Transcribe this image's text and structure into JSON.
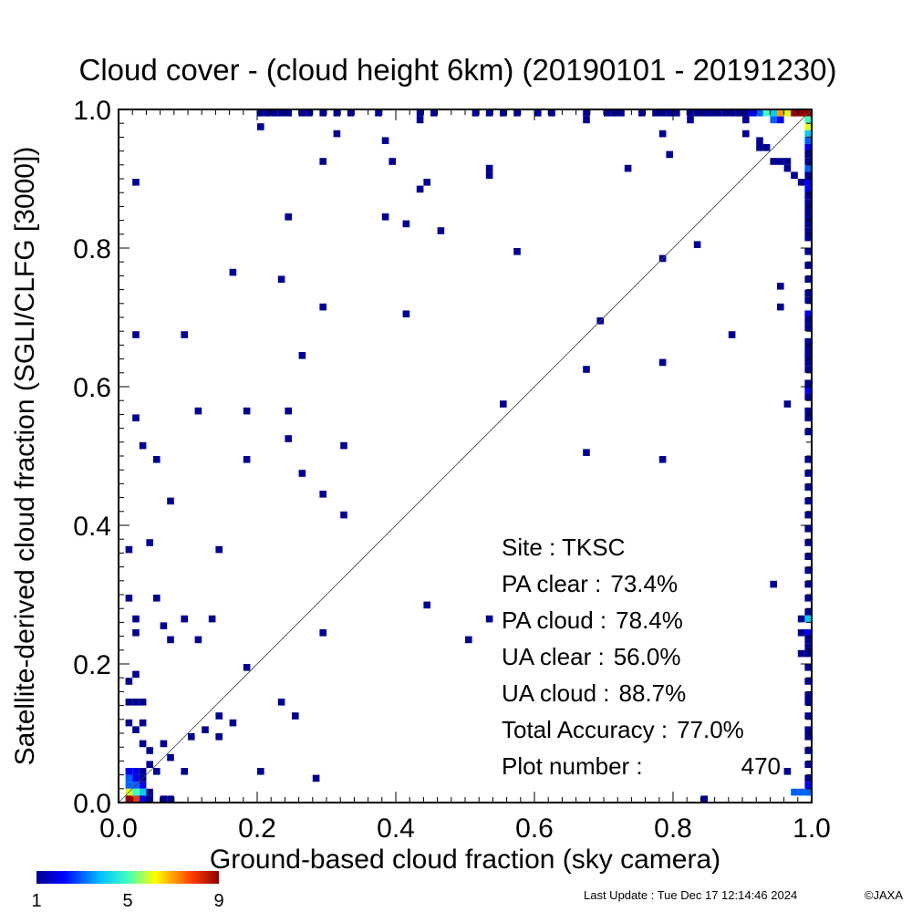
{
  "chart_data": {
    "type": "heatmap",
    "title": "Cloud cover - (cloud height 6km)  (20190101 - 20191230)",
    "xlabel": "Ground-based cloud fraction (sky camera)",
    "ylabel": "Satellite-derived cloud fraction (SGLI/CLFG [3000])",
    "xlim": [
      0.0,
      1.0
    ],
    "ylim": [
      0.0,
      1.0
    ],
    "xticks": [
      "0.0",
      "0.2",
      "0.4",
      "0.6",
      "0.8",
      "1.0"
    ],
    "yticks": [
      "0.0",
      "0.2",
      "0.4",
      "0.6",
      "0.8",
      "1.0"
    ],
    "grid": false,
    "diagonal_reference_line": true,
    "bin_size": 0.01,
    "colorbar": {
      "min_label": "1",
      "mid_label": "5",
      "max_label": "9",
      "colormap": "rainbow"
    },
    "stats": [
      {
        "label": "Site : TKSC",
        "value": ""
      },
      {
        "label": "PA clear :",
        "value": "73.4%"
      },
      {
        "label": "PA cloud :",
        "value": "78.4%"
      },
      {
        "label": "UA clear :",
        "value": "56.0%"
      },
      {
        "label": "UA cloud :",
        "value": "88.7%"
      },
      {
        "label": "Total Accuracy :",
        "value": "77.0%"
      },
      {
        "label": "Plot number :",
        "value": "470"
      }
    ],
    "points": [
      [
        0.2,
        0.99,
        1
      ],
      [
        0.21,
        0.99,
        1
      ],
      [
        0.22,
        0.99,
        1
      ],
      [
        0.23,
        0.99,
        1
      ],
      [
        0.24,
        0.99,
        1
      ],
      [
        0.26,
        0.99,
        1
      ],
      [
        0.27,
        0.99,
        1
      ],
      [
        0.29,
        0.99,
        1
      ],
      [
        0.31,
        0.99,
        1
      ],
      [
        0.33,
        0.99,
        1
      ],
      [
        0.37,
        0.99,
        1
      ],
      [
        0.43,
        0.99,
        1
      ],
      [
        0.45,
        0.99,
        1
      ],
      [
        0.51,
        0.99,
        1
      ],
      [
        0.53,
        0.99,
        1
      ],
      [
        0.55,
        0.99,
        1
      ],
      [
        0.57,
        0.99,
        1
      ],
      [
        0.6,
        0.99,
        1
      ],
      [
        0.62,
        0.99,
        1
      ],
      [
        0.67,
        0.99,
        1
      ],
      [
        0.7,
        0.99,
        1
      ],
      [
        0.71,
        0.99,
        1
      ],
      [
        0.72,
        0.99,
        1
      ],
      [
        0.75,
        0.99,
        1
      ],
      [
        0.77,
        0.99,
        1
      ],
      [
        0.78,
        0.99,
        1
      ],
      [
        0.79,
        0.99,
        1
      ],
      [
        0.8,
        0.99,
        1
      ],
      [
        0.82,
        0.99,
        1
      ],
      [
        0.83,
        0.99,
        1
      ],
      [
        0.84,
        0.99,
        1
      ],
      [
        0.85,
        0.99,
        1
      ],
      [
        0.86,
        0.99,
        1
      ],
      [
        0.87,
        0.99,
        1
      ],
      [
        0.88,
        0.99,
        1
      ],
      [
        0.89,
        0.99,
        1
      ],
      [
        0.9,
        0.99,
        1
      ],
      [
        0.91,
        0.99,
        2
      ],
      [
        0.92,
        0.99,
        3
      ],
      [
        0.93,
        0.99,
        5
      ],
      [
        0.94,
        0.99,
        4
      ],
      [
        0.95,
        0.99,
        7
      ],
      [
        0.96,
        0.99,
        6
      ],
      [
        0.97,
        0.99,
        9
      ],
      [
        0.98,
        0.99,
        9
      ],
      [
        0.99,
        0.99,
        9
      ],
      [
        0.82,
        0.98,
        1
      ],
      [
        0.9,
        0.98,
        1
      ],
      [
        0.94,
        0.98,
        3
      ],
      [
        0.95,
        0.98,
        2
      ],
      [
        0.99,
        0.98,
        5
      ],
      [
        0.99,
        0.97,
        6
      ],
      [
        0.99,
        0.96,
        4
      ],
      [
        0.99,
        0.95,
        3
      ],
      [
        0.99,
        0.94,
        2
      ],
      [
        0.99,
        0.93,
        1
      ],
      [
        0.99,
        0.92,
        1
      ],
      [
        0.99,
        0.91,
        3
      ],
      [
        0.99,
        0.9,
        1
      ],
      [
        0.99,
        0.89,
        2
      ],
      [
        0.99,
        0.88,
        2
      ],
      [
        0.99,
        0.87,
        1
      ],
      [
        0.99,
        0.86,
        1
      ],
      [
        0.99,
        0.85,
        1
      ],
      [
        0.99,
        0.84,
        1
      ],
      [
        0.99,
        0.83,
        1
      ],
      [
        0.99,
        0.82,
        1
      ],
      [
        0.99,
        0.81,
        1
      ],
      [
        0.99,
        0.79,
        1
      ],
      [
        0.99,
        0.77,
        1
      ],
      [
        0.99,
        0.75,
        1
      ],
      [
        0.99,
        0.73,
        1
      ],
      [
        0.99,
        0.72,
        1
      ],
      [
        0.99,
        0.7,
        2
      ],
      [
        0.99,
        0.69,
        1
      ],
      [
        0.99,
        0.68,
        1
      ],
      [
        0.99,
        0.66,
        1
      ],
      [
        0.99,
        0.65,
        1
      ],
      [
        0.99,
        0.64,
        1
      ],
      [
        0.99,
        0.63,
        1
      ],
      [
        0.99,
        0.62,
        1
      ],
      [
        0.99,
        0.6,
        1
      ],
      [
        0.99,
        0.59,
        2
      ],
      [
        0.99,
        0.58,
        1
      ],
      [
        0.99,
        0.56,
        1
      ],
      [
        0.99,
        0.55,
        1
      ],
      [
        0.99,
        0.53,
        1
      ],
      [
        0.99,
        0.49,
        1
      ],
      [
        0.99,
        0.47,
        1
      ],
      [
        0.99,
        0.45,
        1
      ],
      [
        0.99,
        0.43,
        1
      ],
      [
        0.99,
        0.41,
        1
      ],
      [
        0.99,
        0.39,
        1
      ],
      [
        0.99,
        0.37,
        1
      ],
      [
        0.99,
        0.35,
        1
      ],
      [
        0.99,
        0.33,
        1
      ],
      [
        0.99,
        0.31,
        1
      ],
      [
        0.99,
        0.29,
        1
      ],
      [
        0.99,
        0.27,
        1
      ],
      [
        0.99,
        0.26,
        4
      ],
      [
        0.99,
        0.24,
        2
      ],
      [
        0.99,
        0.23,
        1
      ],
      [
        0.99,
        0.22,
        1
      ],
      [
        0.99,
        0.21,
        1
      ],
      [
        0.99,
        0.19,
        1
      ],
      [
        0.99,
        0.17,
        1
      ],
      [
        0.99,
        0.15,
        1
      ],
      [
        0.99,
        0.14,
        1
      ],
      [
        0.99,
        0.12,
        1
      ],
      [
        0.99,
        0.1,
        1
      ],
      [
        0.99,
        0.09,
        1
      ],
      [
        0.99,
        0.07,
        1
      ],
      [
        0.99,
        0.05,
        1
      ],
      [
        0.99,
        0.03,
        1
      ],
      [
        0.99,
        0.02,
        2
      ],
      [
        0.99,
        0.01,
        3
      ],
      [
        0.98,
        0.26,
        1
      ],
      [
        0.98,
        0.24,
        1
      ],
      [
        0.98,
        0.21,
        1
      ],
      [
        0.98,
        0.89,
        1
      ],
      [
        0.98,
        0.01,
        3
      ],
      [
        0.97,
        0.01,
        3
      ],
      [
        0.96,
        0.57,
        1
      ],
      [
        0.95,
        0.71,
        1
      ],
      [
        0.95,
        0.74,
        1
      ],
      [
        0.94,
        0.31,
        1
      ],
      [
        0.96,
        0.04,
        1
      ],
      [
        0.97,
        0.9,
        1
      ],
      [
        0.96,
        0.91,
        1
      ],
      [
        0.96,
        0.92,
        1
      ],
      [
        0.95,
        0.92,
        1
      ],
      [
        0.94,
        0.92,
        1
      ],
      [
        0.93,
        0.94,
        1
      ],
      [
        0.92,
        0.94,
        1
      ],
      [
        0.92,
        0.95,
        1
      ],
      [
        0.9,
        0.96,
        1
      ],
      [
        0.02,
        0.89,
        1
      ],
      [
        0.02,
        0.67,
        1
      ],
      [
        0.02,
        0.55,
        1
      ],
      [
        0.03,
        0.51,
        1
      ],
      [
        0.01,
        0.36,
        1
      ],
      [
        0.04,
        0.37,
        1
      ],
      [
        0.05,
        0.49,
        1
      ],
      [
        0.07,
        0.43,
        1
      ],
      [
        0.09,
        0.67,
        1
      ],
      [
        0.11,
        0.56,
        1
      ],
      [
        0.16,
        0.76,
        1
      ],
      [
        0.18,
        0.56,
        1
      ],
      [
        0.18,
        0.49,
        1
      ],
      [
        0.2,
        0.97,
        1
      ],
      [
        0.23,
        0.75,
        1
      ],
      [
        0.24,
        0.84,
        1
      ],
      [
        0.24,
        0.56,
        1
      ],
      [
        0.24,
        0.52,
        1
      ],
      [
        0.26,
        0.64,
        1
      ],
      [
        0.26,
        0.47,
        1
      ],
      [
        0.29,
        0.92,
        1
      ],
      [
        0.29,
        0.71,
        1
      ],
      [
        0.29,
        0.44,
        1
      ],
      [
        0.31,
        0.96,
        1
      ],
      [
        0.32,
        0.51,
        1
      ],
      [
        0.32,
        0.41,
        1
      ],
      [
        0.38,
        0.95,
        1
      ],
      [
        0.39,
        0.92,
        1
      ],
      [
        0.38,
        0.84,
        1
      ],
      [
        0.41,
        0.83,
        1
      ],
      [
        0.41,
        0.7,
        1
      ],
      [
        0.43,
        0.98,
        1
      ],
      [
        0.43,
        0.88,
        1
      ],
      [
        0.44,
        0.89,
        1
      ],
      [
        0.46,
        0.82,
        1
      ],
      [
        0.53,
        0.91,
        1
      ],
      [
        0.53,
        0.9,
        1
      ],
      [
        0.55,
        0.57,
        1
      ],
      [
        0.57,
        0.79,
        1
      ],
      [
        0.67,
        0.98,
        1
      ],
      [
        0.67,
        0.62,
        1
      ],
      [
        0.67,
        0.5,
        1
      ],
      [
        0.69,
        0.69,
        1
      ],
      [
        0.73,
        0.91,
        1
      ],
      [
        0.78,
        0.96,
        1
      ],
      [
        0.78,
        0.78,
        1
      ],
      [
        0.79,
        0.93,
        1
      ],
      [
        0.78,
        0.63,
        1
      ],
      [
        0.78,
        0.49,
        1
      ],
      [
        0.83,
        0.8,
        1
      ],
      [
        0.88,
        0.67,
        1
      ],
      [
        0.84,
        0.0,
        1
      ],
      [
        0.14,
        0.36,
        1
      ],
      [
        0.01,
        0.29,
        1
      ],
      [
        0.02,
        0.26,
        1
      ],
      [
        0.02,
        0.24,
        1
      ],
      [
        0.05,
        0.29,
        1
      ],
      [
        0.06,
        0.25,
        1
      ],
      [
        0.07,
        0.23,
        1
      ],
      [
        0.09,
        0.26,
        1
      ],
      [
        0.11,
        0.23,
        1
      ],
      [
        0.13,
        0.26,
        1
      ],
      [
        0.18,
        0.19,
        1
      ],
      [
        0.29,
        0.24,
        1
      ],
      [
        0.44,
        0.28,
        1
      ],
      [
        0.5,
        0.23,
        1
      ],
      [
        0.53,
        0.26,
        1
      ],
      [
        0.01,
        0.17,
        1
      ],
      [
        0.02,
        0.18,
        1
      ],
      [
        0.01,
        0.14,
        1
      ],
      [
        0.02,
        0.14,
        1
      ],
      [
        0.03,
        0.14,
        1
      ],
      [
        0.01,
        0.11,
        1
      ],
      [
        0.02,
        0.1,
        1
      ],
      [
        0.03,
        0.11,
        1
      ],
      [
        0.03,
        0.08,
        1
      ],
      [
        0.04,
        0.07,
        1
      ],
      [
        0.06,
        0.08,
        1
      ],
      [
        0.07,
        0.06,
        1
      ],
      [
        0.09,
        0.04,
        1
      ],
      [
        0.1,
        0.09,
        1
      ],
      [
        0.12,
        0.1,
        1
      ],
      [
        0.14,
        0.09,
        1
      ],
      [
        0.14,
        0.12,
        1
      ],
      [
        0.16,
        0.11,
        1
      ],
      [
        0.23,
        0.14,
        1
      ],
      [
        0.25,
        0.12,
        1
      ],
      [
        0.2,
        0.04,
        1
      ],
      [
        0.28,
        0.03,
        1
      ],
      [
        0.01,
        0.04,
        2
      ],
      [
        0.02,
        0.04,
        2
      ],
      [
        0.03,
        0.04,
        1
      ],
      [
        0.01,
        0.03,
        3
      ],
      [
        0.02,
        0.03,
        2
      ],
      [
        0.03,
        0.03,
        1
      ],
      [
        0.01,
        0.02,
        3
      ],
      [
        0.02,
        0.02,
        3
      ],
      [
        0.03,
        0.02,
        2
      ],
      [
        0.04,
        0.05,
        1
      ],
      [
        0.05,
        0.04,
        1
      ],
      [
        0.01,
        0.01,
        6
      ],
      [
        0.02,
        0.01,
        5
      ],
      [
        0.03,
        0.01,
        4
      ],
      [
        0.04,
        0.01,
        1
      ],
      [
        0.01,
        0.0,
        9
      ],
      [
        0.02,
        0.0,
        8
      ],
      [
        0.03,
        0.0,
        2
      ],
      [
        0.04,
        0.0,
        1
      ],
      [
        0.06,
        0.0,
        1
      ],
      [
        0.07,
        0.0,
        1
      ]
    ]
  },
  "footer": {
    "last_update": "Last Update : Tue Dec 17 12:14:46 2024",
    "copyright": "©JAXA"
  }
}
